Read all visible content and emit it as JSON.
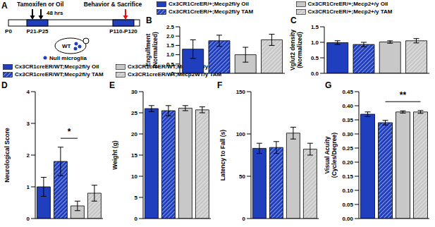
{
  "diagram": {
    "panel": "A",
    "treatment": "Tamoxifen or Oil",
    "interval": "48 hrs",
    "endpoint": "Behavior & Sacrifice",
    "timepoints": [
      "P0",
      "P21-P25",
      "P110-P120"
    ],
    "mouse": "WT",
    "dot_label": "Null microglia"
  },
  "legends": [
    {
      "names": [
        "Cx3CR1CreER/+;Mecp2fl/y Oil",
        "Cx3CR1CreER/+;Mecp2fl/y TAM",
        "Cx3CR1CreER/+;Mecp2+/y Oil",
        "Cx3CR1CreER/+;Mecp2+/y TAM"
      ],
      "colors": [
        "#1f3fbf",
        "#1f3fbf",
        "#c8c8c8",
        "#c8c8c8"
      ]
    },
    {
      "names": [
        "Cx3CR1creER/WT;Mecp2fl/y Oil",
        "Cx3CR1creER/WT;Mecp2fl/y TAM",
        "Cx3CR1creER/WT;Mecp2WT/y Oil",
        "Cx3CR1creER/WT;Mecp2WT/y TAM"
      ],
      "colors": [
        "#1f3fbf",
        "#1f3fbf",
        "#c8c8c8",
        "#c8c8c8"
      ]
    }
  ],
  "chart_data": [
    {
      "type": "bar",
      "title": "B",
      "y_label": [
        "Engulfment",
        "(Normalized)"
      ],
      "categories": [
        null,
        null,
        null,
        null
      ],
      "values": [
        1.3,
        1.75,
        1.0,
        1.8
      ],
      "errors": [
        0.5,
        0.3,
        0.4,
        0.3
      ],
      "colors": [
        "#1f3fbf",
        "#1f3fbf",
        "#c8c8c8",
        "#c8c8c8"
      ],
      "ylim": [
        0,
        2.5
      ],
      "yticks": [
        0,
        0.5,
        {
          "value": 1,
          "label": "1.0"
        },
        1.5,
        {
          "value": 2,
          "label": "2.0"
        },
        2.5
      ],
      "tick_labels": "y"
    },
    {
      "type": "bar",
      "title": "C",
      "y_label": [
        "Vglut2 density",
        "(Normalized)"
      ],
      "categories": [
        null,
        null,
        null,
        null
      ],
      "values": [
        0.99,
        0.93,
        1.01,
        1.05
      ],
      "errors": [
        0.06,
        0.07,
        0.04,
        0.07
      ],
      "colors": [
        "#1f3fbf",
        "#1f3fbf",
        "#c8c8c8",
        "#c8c8c8"
      ],
      "ylim": [
        0,
        1.5
      ],
      "yticks": [
        {
          "value": 0,
          "label": "0.0"
        },
        0.5,
        {
          "value": 1,
          "label": "1.0"
        },
        1.5
      ],
      "tick_labels": "y"
    },
    {
      "type": "bar",
      "title": "D",
      "y_label": [
        "Neurological Score"
      ],
      "categories": [
        null,
        null,
        null,
        null
      ],
      "values": [
        1.0,
        1.8,
        0.4,
        0.8
      ],
      "errors": [
        0.3,
        0.45,
        0.15,
        0.25
      ],
      "colors": [
        "#1f3fbf",
        "#1f3fbf",
        "#c8c8c8",
        "#c8c8c8"
      ],
      "ylim": [
        0,
        4
      ],
      "yticks": [
        0,
        1,
        2,
        3,
        4
      ],
      "tick_labels": "y",
      "significance": [
        {
          "text": "*",
          "from": 1,
          "to": 2
        }
      ]
    },
    {
      "type": "bar",
      "title": "E",
      "y_label": [
        "Weight (g)"
      ],
      "categories": [
        null,
        null,
        null,
        null
      ],
      "values": [
        26,
        25.5,
        26.1,
        25.7
      ],
      "errors": [
        0.7,
        1.2,
        0.6,
        0.7
      ],
      "colors": [
        "#1f3fbf",
        "#1f3fbf",
        "#c8c8c8",
        "#c8c8c8"
      ],
      "ylim": [
        0,
        30
      ],
      "yticks": [
        0,
        5,
        10,
        15,
        20,
        25,
        30
      ],
      "tick_labels": "y"
    },
    {
      "type": "bar",
      "title": "F",
      "y_label": [
        "Latency to Fall (s)"
      ],
      "categories": [
        null,
        null,
        null,
        null
      ],
      "values": [
        83,
        84,
        101,
        82
      ],
      "errors": [
        6,
        7,
        7,
        7
      ],
      "colors": [
        "#1f3fbf",
        "#1f3fbf",
        "#c8c8c8",
        "#c8c8c8"
      ],
      "ylim": [
        0,
        150
      ],
      "yticks": [
        0,
        50,
        100,
        150
      ],
      "tick_labels": "y"
    },
    {
      "type": "bar",
      "title": "G",
      "y_label": [
        "Visual Acuity",
        "(Cycles/Degree)"
      ],
      "categories": [
        null,
        null,
        null,
        null
      ],
      "values": [
        0.37,
        0.34,
        0.378,
        0.378
      ],
      "errors": [
        0.008,
        0.008,
        0.004,
        0.005
      ],
      "colors": [
        "#1f3fbf",
        "#1f3fbf",
        "#c8c8c8",
        "#c8c8c8"
      ],
      "ylim": [
        0,
        0.45
      ],
      "yticks": [
        {
          "value": 0,
          "label": "0.00"
        },
        0.05,
        {
          "value": 0.1,
          "label": "0.10"
        },
        0.15,
        {
          "value": 0.2,
          "label": "0.20"
        },
        0.25,
        {
          "value": 0.3,
          "label": "0.30"
        },
        0.35,
        {
          "value": 0.4,
          "label": "0.40"
        },
        0.45
      ],
      "tick_labels": "y",
      "significance": [
        {
          "text": "**",
          "from": 1,
          "to": 3
        }
      ]
    }
  ]
}
